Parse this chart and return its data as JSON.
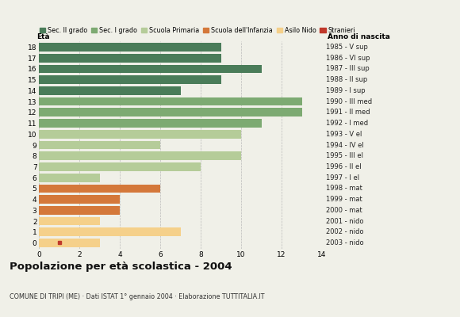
{
  "ages": [
    18,
    17,
    16,
    15,
    14,
    13,
    12,
    11,
    10,
    9,
    8,
    7,
    6,
    5,
    4,
    3,
    2,
    1,
    0
  ],
  "values": [
    9,
    9,
    11,
    9,
    7,
    13,
    13,
    11,
    10,
    6,
    10,
    8,
    3,
    6,
    4,
    4,
    3,
    7,
    3
  ],
  "categories": [
    "Sec. II grado",
    "Sec. II grado",
    "Sec. II grado",
    "Sec. II grado",
    "Sec. II grado",
    "Sec. I grado",
    "Sec. I grado",
    "Sec. I grado",
    "Scuola Primaria",
    "Scuola Primaria",
    "Scuola Primaria",
    "Scuola Primaria",
    "Scuola Primaria",
    "Scuola dell'Infanzia",
    "Scuola dell'Infanzia",
    "Scuola dell'Infanzia",
    "Asilo Nido",
    "Asilo Nido",
    "Asilo Nido"
  ],
  "stranieri_ages": [
    0
  ],
  "stranieri_values": [
    1
  ],
  "colors": {
    "Sec. II grado": "#4a7c59",
    "Sec. I grado": "#7daa72",
    "Scuola Primaria": "#b5cc99",
    "Scuola dell'Infanzia": "#d4783a",
    "Asilo Nido": "#f5d08a",
    "Stranieri": "#c0392b"
  },
  "anno_labels": [
    "1985 - V sup",
    "1986 - VI sup",
    "1987 - III sup",
    "1988 - II sup",
    "1989 - I sup",
    "1990 - III med",
    "1991 - II med",
    "1992 - I med",
    "1993 - V el",
    "1994 - IV el",
    "1995 - III el",
    "1996 - II el",
    "1997 - I el",
    "1998 - mat",
    "1999 - mat",
    "2000 - mat",
    "2001 - nido",
    "2002 - nido",
    "2003 - nido"
  ],
  "title": "Popolazione per età scolastica - 2004",
  "subtitle": "COMUNE DI TRIPI (ME) · Dati ISTAT 1° gennaio 2004 · Elaborazione TUTTITALIA.IT",
  "xlabel_left": "Età",
  "xlabel_right": "Anno di nascita",
  "xlim": [
    0,
    14
  ],
  "background_color": "#f0f0e8",
  "grid_color": "#bbbbbb",
  "bar_height": 0.78
}
